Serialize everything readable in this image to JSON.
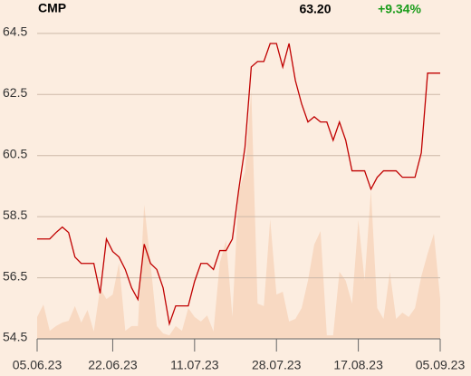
{
  "chart_data": {
    "type": "line",
    "last_price": "63.20",
    "change": "+9.34%",
    "categories": [
      "05.06.23",
      null,
      null,
      null,
      null,
      null,
      null,
      null,
      null,
      null,
      null,
      null,
      "22.06.23",
      null,
      null,
      null,
      null,
      null,
      null,
      null,
      null,
      null,
      null,
      null,
      null,
      "11.07.23",
      null,
      null,
      null,
      null,
      null,
      null,
      null,
      null,
      null,
      null,
      null,
      null,
      "28.07.23",
      null,
      null,
      null,
      null,
      null,
      null,
      null,
      null,
      null,
      null,
      null,
      null,
      "17.08.23",
      null,
      null,
      null,
      null,
      null,
      null,
      null,
      null,
      null,
      null,
      null,
      null,
      "05.09.23"
    ],
    "series": [
      {
        "name": "CMP",
        "color": "#c00000",
        "values": [
          57.77,
          57.77,
          57.77,
          57.98,
          58.16,
          57.98,
          57.18,
          56.97,
          56.97,
          56.97,
          55.99,
          57.77,
          57.36,
          57.18,
          56.77,
          56.17,
          55.79,
          57.6,
          56.97,
          56.77,
          56.17,
          54.99,
          55.58,
          55.58,
          55.58,
          56.38,
          56.97,
          56.97,
          56.77,
          57.39,
          57.39,
          57.77,
          59.37,
          60.77,
          63.4,
          63.58,
          63.58,
          64.17,
          64.17,
          63.4,
          64.17,
          62.96,
          62.19,
          61.6,
          61.77,
          61.6,
          61.6,
          61.0,
          61.6,
          61.0,
          60.0,
          60.0,
          60.0,
          59.4,
          59.79,
          60.0,
          60.0,
          60.0,
          59.79,
          59.79,
          59.79,
          60.59,
          63.2,
          63.2,
          63.2
        ]
      },
      {
        "color": "#f8d9c2",
        "axis": "y2",
        "values": [
          6.8,
          10.7,
          2.5,
          4.0,
          5.1,
          5.6,
          10.2,
          5.1,
          9.0,
          2.3,
          15.8,
          12.4,
          13.8,
          23.7,
          2.5,
          4.0,
          4.0,
          41.8,
          23.7,
          4.0,
          1.7,
          1.1,
          4.0,
          2.5,
          9.6,
          6.8,
          5.4,
          7.3,
          2.3,
          23.7,
          30.8,
          6.8,
          46.3,
          52.0,
          77.4,
          11.0,
          10.2,
          37.3,
          13.8,
          14.7,
          5.4,
          6.2,
          9.6,
          18.1,
          29.4,
          33.6,
          1.1,
          1.1,
          20.9,
          18.1,
          11.0,
          37.0,
          18.1,
          46.3,
          9.6,
          6.2,
          20.9,
          6.2,
          8.2,
          6.8,
          9.6,
          19.5,
          26.6,
          32.8,
          12.4
        ]
      }
    ],
    "ylim": [
      54.5,
      65.0
    ],
    "yticks": [
      54.5,
      56.5,
      58.5,
      60.5,
      62.5,
      64.5
    ],
    "y2lim": [
      0,
      100
    ],
    "grid": true,
    "change_color": "#1a9c1a"
  }
}
